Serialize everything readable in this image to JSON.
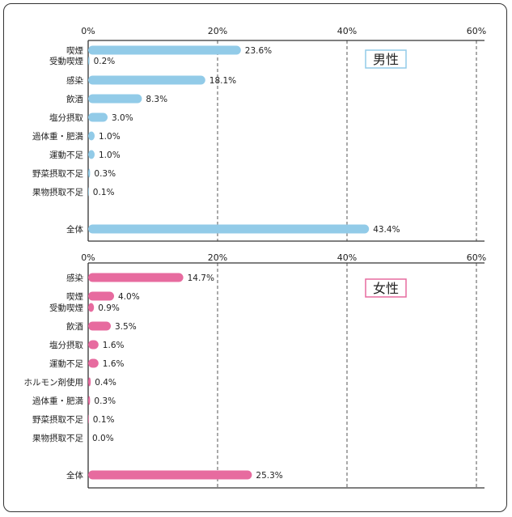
{
  "chart_data": [
    {
      "type": "bar",
      "orientation": "horizontal",
      "legend": "男性",
      "xlim": [
        0,
        60
      ],
      "ticks": [
        "0%",
        "20%",
        "40%",
        "60%"
      ],
      "tick_values": [
        0,
        20,
        40,
        60
      ],
      "grid": true,
      "color": "#92cbe8",
      "categories": [
        "喫煙",
        "受動喫煙",
        "感染",
        "飲酒",
        "塩分摂取",
        "過体重・肥満",
        "運動不足",
        "野菜摂取不足",
        "果物摂取不足",
        "全体"
      ],
      "values": [
        23.6,
        0.2,
        18.1,
        8.3,
        3.0,
        1.0,
        1.0,
        0.3,
        0.1,
        43.4
      ],
      "labels": [
        "23.6%",
        "0.2%",
        "18.1%",
        "8.3%",
        "3.0%",
        "1.0%",
        "1.0%",
        "0.3%",
        "0.1%",
        "43.4%"
      ]
    },
    {
      "type": "bar",
      "orientation": "horizontal",
      "legend": "女性",
      "xlim": [
        0,
        60
      ],
      "ticks": [
        "0%",
        "20%",
        "40%",
        "60%"
      ],
      "tick_values": [
        0,
        20,
        40,
        60
      ],
      "grid": true,
      "color": "#e76b9f",
      "categories": [
        "感染",
        "喫煙",
        "受動喫煙",
        "飲酒",
        "塩分摂取",
        "運動不足",
        "ホルモン剤使用",
        "過体重・肥満",
        "野菜摂取不足",
        "果物摂取不足",
        "全体"
      ],
      "values": [
        14.7,
        4.0,
        0.9,
        3.5,
        1.6,
        1.6,
        0.4,
        0.3,
        0.1,
        0.0,
        25.3
      ],
      "labels": [
        "14.7%",
        "4.0%",
        "0.9%",
        "3.5%",
        "1.6%",
        "1.6%",
        "0.4%",
        "0.3%",
        "0.1%",
        "0.0%",
        "25.3%"
      ]
    }
  ]
}
